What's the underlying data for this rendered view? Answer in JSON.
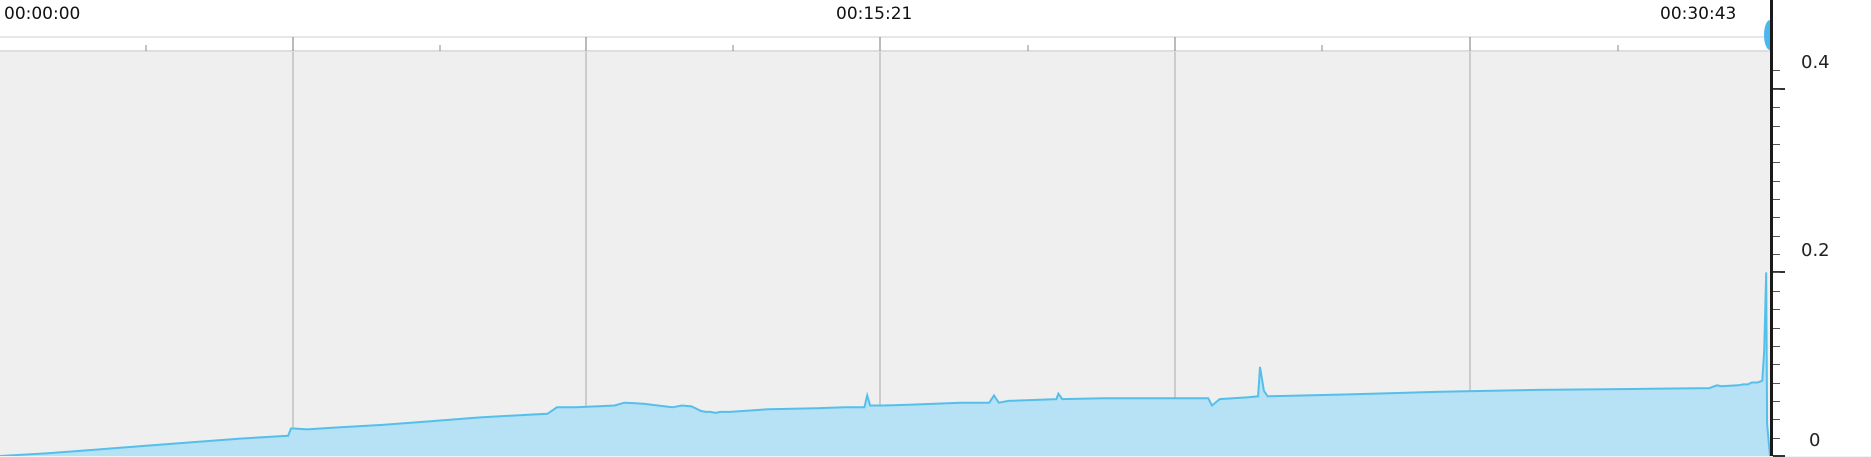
{
  "chart_data": {
    "type": "area",
    "time_labels": [
      "00:00:00",
      "00:15:21",
      "00:30:43"
    ],
    "x_range_seconds": [
      0,
      1843
    ],
    "ylim": [
      0,
      0.44
    ],
    "y_ticks": [
      "0.4",
      "0.2",
      "0"
    ],
    "y_tick_values": [
      0.4,
      0.2,
      0
    ],
    "grid": true,
    "fill_color": "#b7e1f4",
    "line_color": "#55bfeb",
    "series": [
      {
        "x": [
          0,
          50,
          100,
          150,
          200,
          250,
          300,
          303,
          306,
          320,
          350,
          400,
          450,
          500,
          550,
          570,
          580,
          600,
          640,
          650,
          670,
          700,
          710,
          720,
          730,
          735,
          740,
          745,
          750,
          760,
          800,
          850,
          880,
          900,
          903,
          906,
          920,
          950,
          1000,
          1020,
          1030,
          1035,
          1040,
          1050,
          1100,
          1102,
          1106,
          1150,
          1200,
          1250,
          1258,
          1262,
          1270,
          1300,
          1310,
          1312,
          1316,
          1320,
          1400,
          1500,
          1600,
          1700,
          1780,
          1785,
          1788,
          1792,
          1810,
          1815,
          1820,
          1824,
          1830,
          1835,
          1837,
          1839,
          1840,
          1843
        ],
        "y": [
          0.0,
          0.003,
          0.007,
          0.011,
          0.015,
          0.019,
          0.022,
          0.03,
          0.03,
          0.029,
          0.031,
          0.034,
          0.038,
          0.042,
          0.045,
          0.046,
          0.053,
          0.053,
          0.055,
          0.058,
          0.057,
          0.053,
          0.055,
          0.054,
          0.049,
          0.048,
          0.048,
          0.047,
          0.048,
          0.048,
          0.051,
          0.052,
          0.053,
          0.053,
          0.066,
          0.055,
          0.055,
          0.056,
          0.058,
          0.058,
          0.058,
          0.066,
          0.058,
          0.06,
          0.062,
          0.068,
          0.062,
          0.063,
          0.063,
          0.063,
          0.063,
          0.055,
          0.062,
          0.064,
          0.065,
          0.097,
          0.071,
          0.065,
          0.067,
          0.07,
          0.072,
          0.073,
          0.074,
          0.076,
          0.077,
          0.076,
          0.077,
          0.078,
          0.078,
          0.08,
          0.08,
          0.082,
          0.115,
          0.2,
          0.035,
          0.0
        ]
      }
    ]
  }
}
